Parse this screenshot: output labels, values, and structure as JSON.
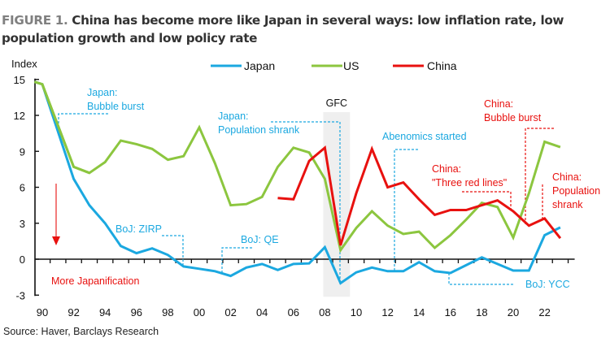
{
  "title": {
    "figure_label": "FIGURE 1.",
    "text": " China has become more like Japan in several ways: low inflation rate, low population growth and low policy rate"
  },
  "source": "Source: Haver, Barclays Research",
  "colors": {
    "japan": "#1ba8e0",
    "us": "#8cc63f",
    "china": "#e8110f",
    "gfc_band": "#efefef",
    "axis": "#111111"
  },
  "chart_data": {
    "type": "line",
    "title": "China has become more like Japan in several ways: low inflation rate, low population growth and low policy rate",
    "ylabel": "Index",
    "xlabel": "",
    "ylim": [
      -3,
      15
    ],
    "yticks": [
      15,
      12,
      9,
      6,
      3,
      0,
      -3
    ],
    "xlim": [
      1989.5,
      2023.5
    ],
    "xtick_years": [
      1990,
      1992,
      1994,
      1996,
      1998,
      2000,
      2002,
      2004,
      2006,
      2008,
      2010,
      2012,
      2014,
      2016,
      2018,
      2020,
      2022
    ],
    "xtick_labels": [
      "90",
      "92",
      "94",
      "96",
      "98",
      "00",
      "02",
      "04",
      "06",
      "08",
      "10",
      "12",
      "14",
      "16",
      "18",
      "20",
      "22"
    ],
    "legend": {
      "placement": "top-center",
      "entries": [
        "Japan",
        "US",
        "China"
      ]
    },
    "grid": false,
    "series": [
      {
        "name": "Japan",
        "x": [
          1989.5,
          1990,
          1992,
          1993,
          1994,
          1995,
          1996,
          1997,
          1998,
          1999,
          2000,
          2001,
          2002,
          2003,
          2004,
          2005,
          2006,
          2007,
          2008,
          2009,
          2010,
          2011,
          2012,
          2013,
          2014,
          2015,
          2016,
          2017,
          2018,
          2019,
          2020,
          2021,
          2022,
          2023
        ],
        "values": [
          14.8,
          14.6,
          6.7,
          4.5,
          3.0,
          1.1,
          0.5,
          0.9,
          0.35,
          -0.6,
          -0.8,
          -1.0,
          -1.4,
          -0.7,
          -0.4,
          -0.9,
          -0.4,
          -0.35,
          1.0,
          -2.0,
          -1.1,
          -0.7,
          -1.0,
          -1.0,
          -0.25,
          -1.0,
          -1.15,
          -0.5,
          0.15,
          -0.4,
          -0.95,
          -0.95,
          2.0,
          2.65
        ]
      },
      {
        "name": "US",
        "x": [
          1989.5,
          1990,
          1992,
          1993,
          1994,
          1995,
          1996,
          1997,
          1998,
          1999,
          2000,
          2001,
          2002,
          2003,
          2004,
          2005,
          2006,
          2007,
          2008,
          2009,
          2010,
          2011,
          2012,
          2013,
          2014,
          2015,
          2016,
          2017,
          2018,
          2019,
          2020,
          2021,
          2022,
          2023
        ],
        "values": [
          14.8,
          14.6,
          7.7,
          7.2,
          8.1,
          9.9,
          9.6,
          9.2,
          8.3,
          8.6,
          11.0,
          8.0,
          4.5,
          4.6,
          5.2,
          7.7,
          9.3,
          8.9,
          6.7,
          0.75,
          2.6,
          4.0,
          2.8,
          2.1,
          2.3,
          0.95,
          2.0,
          3.3,
          4.7,
          4.35,
          1.8,
          5.5,
          9.8,
          9.35
        ]
      },
      {
        "name": "China",
        "x": [
          2005,
          2006,
          2007,
          2008,
          2009,
          2010,
          2011,
          2012,
          2013,
          2014,
          2015,
          2016,
          2017,
          2018,
          2019,
          2020,
          2021,
          2022,
          2023
        ],
        "values": [
          5.1,
          5.0,
          8.2,
          9.3,
          1.15,
          5.5,
          9.2,
          6.0,
          6.4,
          5.0,
          3.7,
          4.1,
          4.1,
          4.5,
          4.9,
          4.0,
          2.8,
          3.4,
          1.75
        ]
      }
    ],
    "shaded_regions": [
      {
        "label": "GFC",
        "x_from": 2007.9,
        "x_to": 2009.6
      }
    ],
    "annotations": [
      {
        "id": "japan-bubble-burst",
        "lines": [
          "Japan:",
          "Bubble burst"
        ],
        "series": "Japan",
        "year": 1991
      },
      {
        "id": "boj-zirp",
        "lines": [
          "BoJ: ZIRP"
        ],
        "series": "Japan",
        "year": 1999
      },
      {
        "id": "boj-qe",
        "lines": [
          "BoJ: QE"
        ],
        "series": "Japan",
        "year": 2001
      },
      {
        "id": "japan-population-shrank",
        "lines": [
          "Japan:",
          "Population shrank"
        ],
        "series": "Japan",
        "year": 2009
      },
      {
        "id": "abenomics-started",
        "lines": [
          "Abenomics started"
        ],
        "series": "Japan",
        "year": 2013
      },
      {
        "id": "boj-ycc",
        "lines": [
          "BoJ: YCC"
        ],
        "series": "Japan",
        "year": 2016
      },
      {
        "id": "china-three-red-lines",
        "lines": [
          "China:",
          "\"Three red lines\""
        ],
        "series": "China",
        "year": 2020
      },
      {
        "id": "china-bubble-burst",
        "lines": [
          "China:",
          "Bubble burst"
        ],
        "series": "China",
        "year": 2021
      },
      {
        "id": "china-population-shrank",
        "lines": [
          "China:",
          "Population",
          "shrank"
        ],
        "series": "China",
        "year": 2022
      },
      {
        "id": "more-japanification",
        "lines": [
          "More Japanification"
        ],
        "series": "China",
        "year": 1991
      }
    ]
  }
}
